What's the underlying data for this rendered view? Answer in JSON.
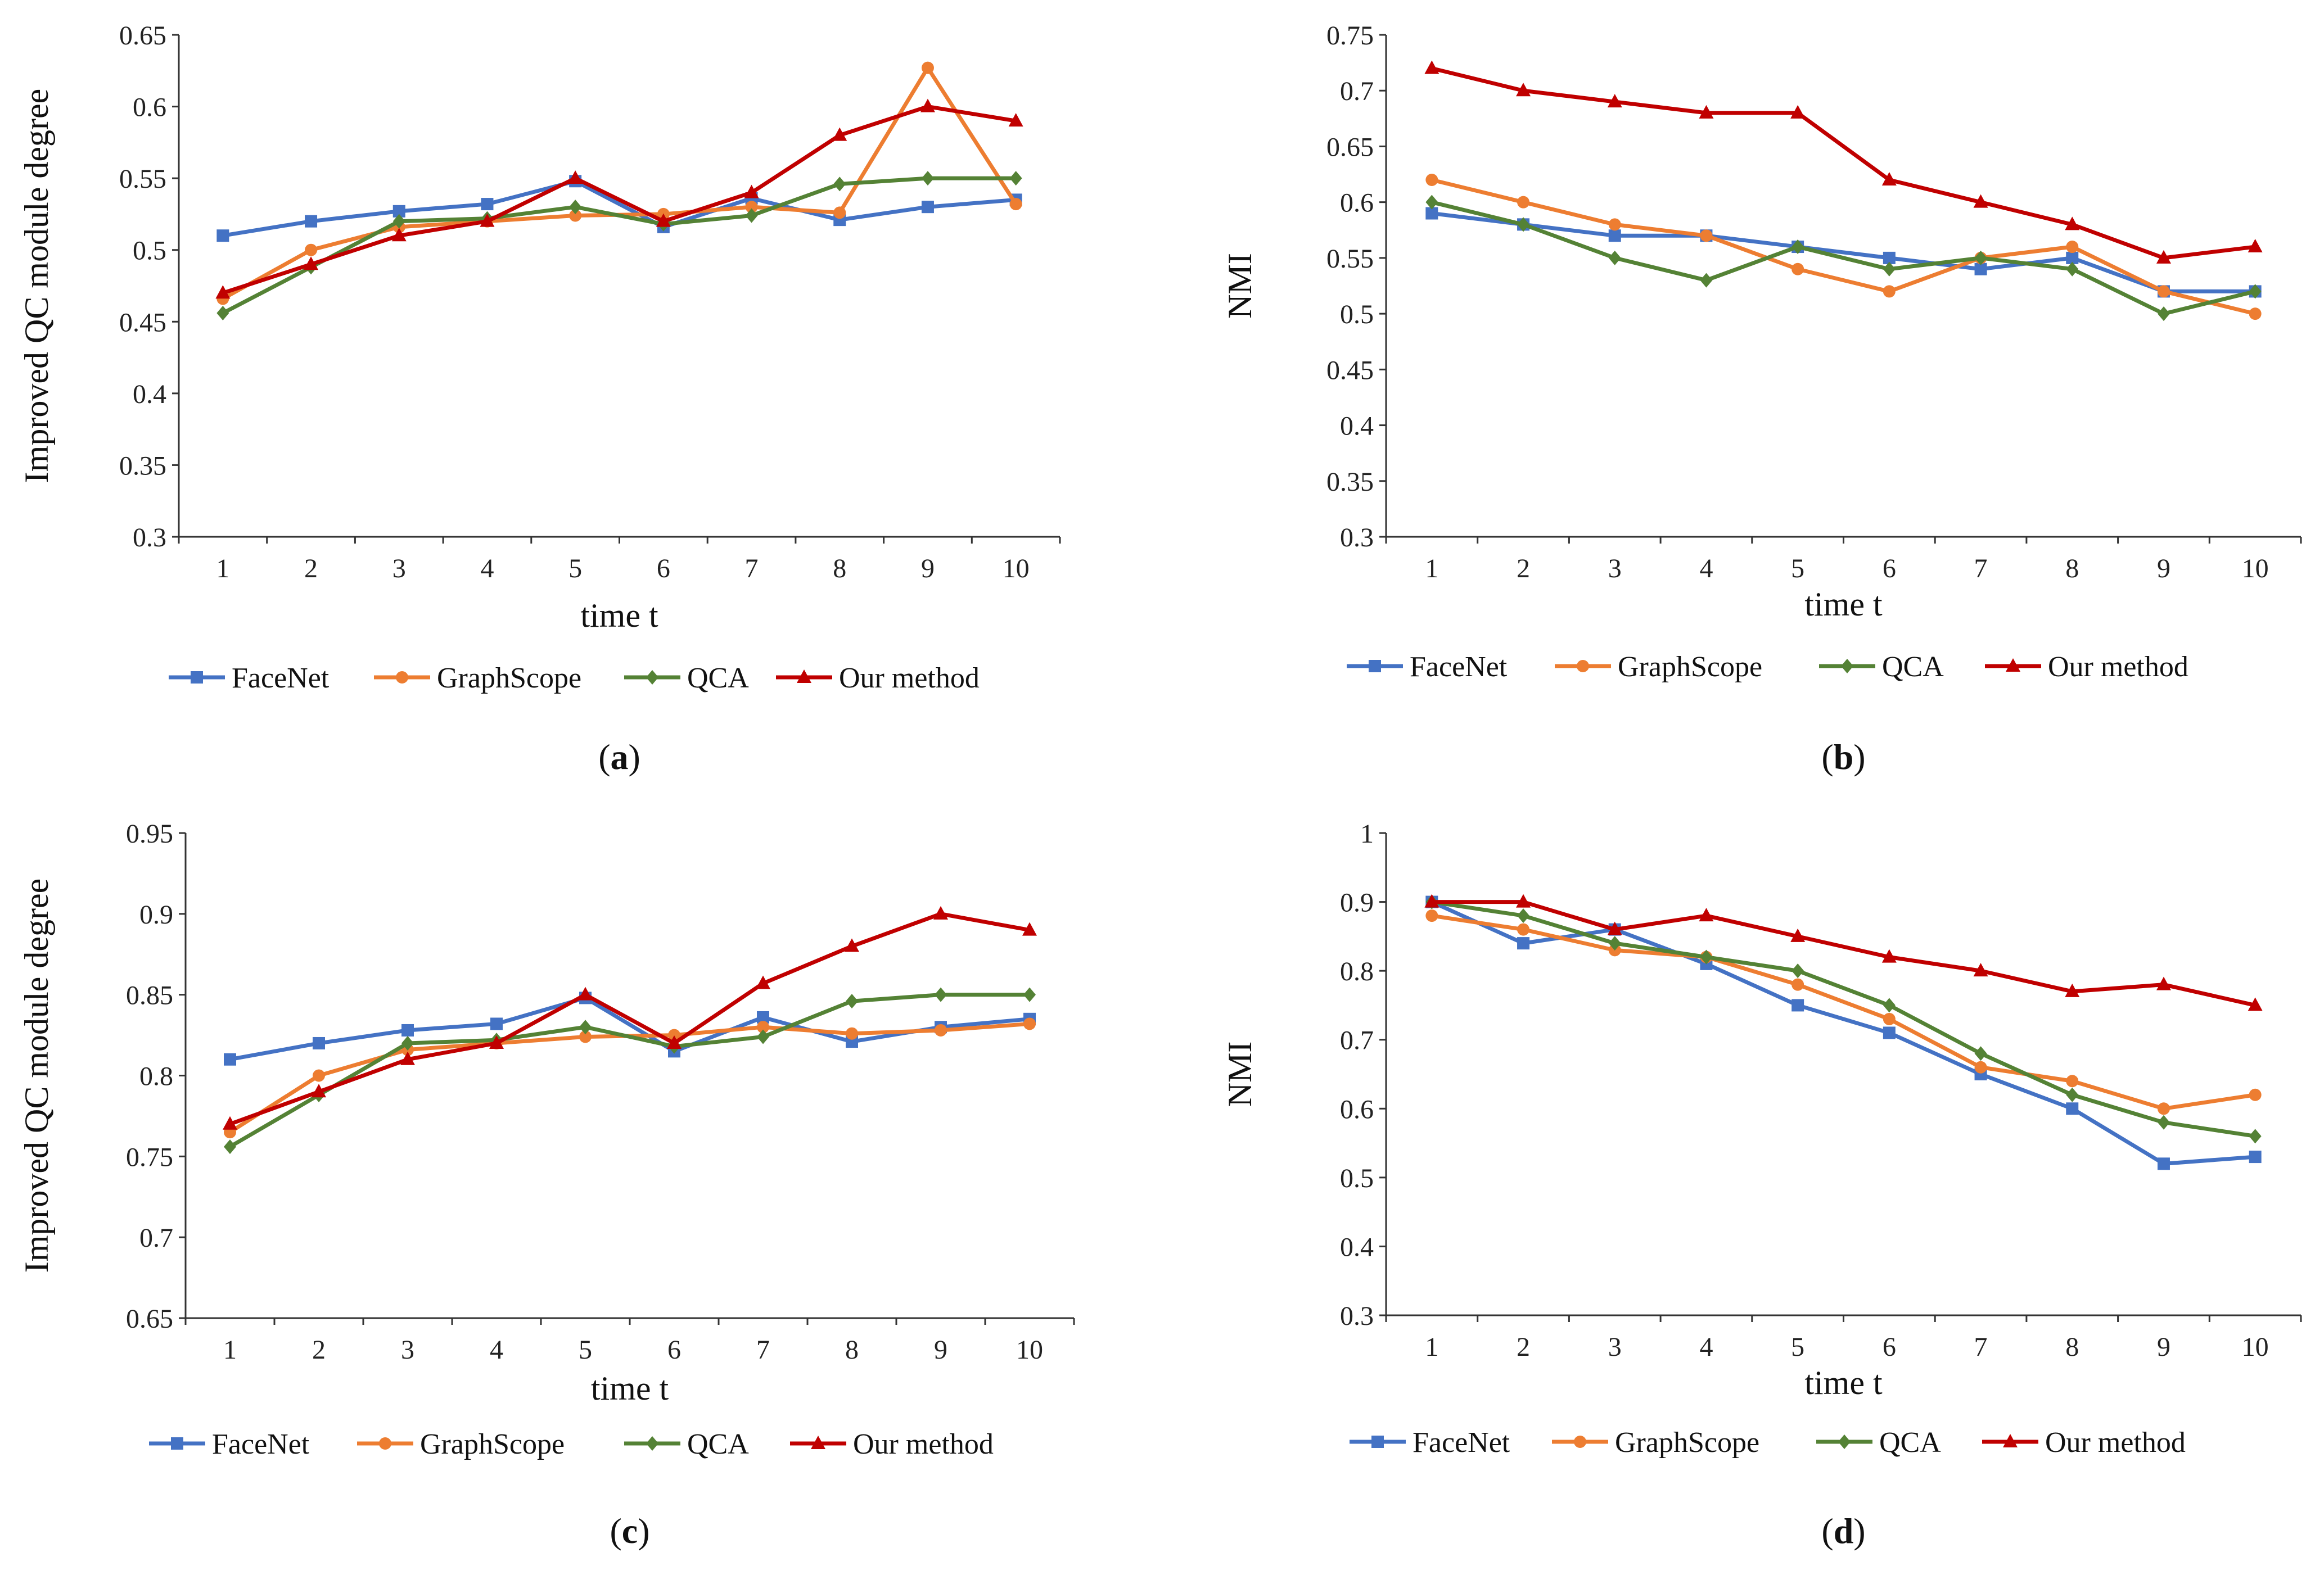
{
  "figure": {
    "legend_labels": [
      "FaceNet",
      "GraphScope",
      "QCA",
      "Our method"
    ],
    "series_colors": {
      "FaceNet": "#4472C4",
      "GraphScope": "#ED7D31",
      "QCA": "#548235",
      "Our method": "#C00000"
    },
    "series_markers": {
      "FaceNet": "square",
      "GraphScope": "circle",
      "QCA": "diamond",
      "Our method": "triangle"
    }
  },
  "chart_data": [
    {
      "type": "line",
      "panel_label": "a",
      "title": "",
      "xlabel": "time t",
      "ylabel": "Improved QC module degree",
      "x": [
        1,
        2,
        3,
        4,
        5,
        6,
        7,
        8,
        9,
        10
      ],
      "ylim": [
        0.3,
        0.65
      ],
      "yticks": [
        0.3,
        0.35,
        0.4,
        0.45,
        0.5,
        0.55,
        0.6,
        0.65
      ],
      "ytick_labels": [
        "0.3",
        "0.35",
        "0.4",
        "0.45",
        "0.5",
        "0.55",
        "0.6",
        "0.65"
      ],
      "grid": false,
      "legend": "bottom",
      "series": [
        {
          "name": "FaceNet",
          "values": [
            0.51,
            0.52,
            0.527,
            0.532,
            0.548,
            0.516,
            0.536,
            0.521,
            0.53,
            0.535
          ]
        },
        {
          "name": "GraphScope",
          "values": [
            0.466,
            0.5,
            0.516,
            0.52,
            0.524,
            0.525,
            0.53,
            0.526,
            0.627,
            0.532
          ]
        },
        {
          "name": "QCA",
          "values": [
            0.456,
            0.488,
            0.52,
            0.522,
            0.53,
            0.518,
            0.524,
            0.546,
            0.55,
            0.55
          ]
        },
        {
          "name": "Our method",
          "values": [
            0.47,
            0.49,
            0.51,
            0.52,
            0.55,
            0.52,
            0.54,
            0.58,
            0.6,
            0.59
          ]
        }
      ]
    },
    {
      "type": "line",
      "panel_label": "b",
      "title": "",
      "xlabel": "time t",
      "ylabel": "NMI",
      "x": [
        1,
        2,
        3,
        4,
        5,
        6,
        7,
        8,
        9,
        10
      ],
      "ylim": [
        0.3,
        0.75
      ],
      "yticks": [
        0.3,
        0.35,
        0.4,
        0.45,
        0.5,
        0.55,
        0.6,
        0.65,
        0.7,
        0.75
      ],
      "ytick_labels": [
        "0.3",
        "0.35",
        "0.4",
        "0.45",
        "0.5",
        "0.55",
        "0.6",
        "0.65",
        "0.7",
        "0.75"
      ],
      "grid": false,
      "legend": "bottom",
      "series": [
        {
          "name": "FaceNet",
          "values": [
            0.59,
            0.58,
            0.57,
            0.57,
            0.56,
            0.55,
            0.54,
            0.55,
            0.52,
            0.52
          ]
        },
        {
          "name": "GraphScope",
          "values": [
            0.62,
            0.6,
            0.58,
            0.57,
            0.54,
            0.52,
            0.55,
            0.56,
            0.52,
            0.5
          ]
        },
        {
          "name": "QCA",
          "values": [
            0.6,
            0.58,
            0.55,
            0.53,
            0.56,
            0.54,
            0.55,
            0.54,
            0.5,
            0.52
          ]
        },
        {
          "name": "Our method",
          "values": [
            0.72,
            0.7,
            0.69,
            0.68,
            0.68,
            0.62,
            0.6,
            0.58,
            0.55,
            0.56
          ]
        }
      ]
    },
    {
      "type": "line",
      "panel_label": "c",
      "title": "",
      "xlabel": "time t",
      "ylabel": "Improved QC module degree",
      "x": [
        1,
        2,
        3,
        4,
        5,
        6,
        7,
        8,
        9,
        10
      ],
      "ylim": [
        0.65,
        0.95
      ],
      "yticks": [
        0.65,
        0.7,
        0.75,
        0.8,
        0.85,
        0.9,
        0.95
      ],
      "ytick_labels": [
        "0.65",
        "0.7",
        "0.75",
        "0.8",
        "0.85",
        "0.9",
        "0.95"
      ],
      "grid": false,
      "legend": "bottom",
      "series": [
        {
          "name": "FaceNet",
          "values": [
            0.81,
            0.82,
            0.828,
            0.832,
            0.848,
            0.815,
            0.836,
            0.821,
            0.83,
            0.835
          ]
        },
        {
          "name": "GraphScope",
          "values": [
            0.765,
            0.8,
            0.816,
            0.82,
            0.824,
            0.825,
            0.83,
            0.826,
            0.828,
            0.832
          ]
        },
        {
          "name": "QCA",
          "values": [
            0.756,
            0.788,
            0.82,
            0.822,
            0.83,
            0.818,
            0.824,
            0.846,
            0.85,
            0.85
          ]
        },
        {
          "name": "Our method",
          "values": [
            0.77,
            0.79,
            0.81,
            0.82,
            0.85,
            0.82,
            0.857,
            0.88,
            0.9,
            0.89
          ]
        }
      ]
    },
    {
      "type": "line",
      "panel_label": "d",
      "title": "",
      "xlabel": "time t",
      "ylabel": "NMI",
      "x": [
        1,
        2,
        3,
        4,
        5,
        6,
        7,
        8,
        9,
        10
      ],
      "ylim": [
        0.3,
        1.0
      ],
      "yticks": [
        0.3,
        0.4,
        0.5,
        0.6,
        0.7,
        0.8,
        0.9,
        1.0
      ],
      "ytick_labels": [
        "0.3",
        "0.4",
        "0.5",
        "0.6",
        "0.7",
        "0.8",
        "0.9",
        "1"
      ],
      "grid": false,
      "legend": "bottom",
      "series": [
        {
          "name": "FaceNet",
          "values": [
            0.9,
            0.84,
            0.86,
            0.81,
            0.75,
            0.71,
            0.65,
            0.6,
            0.52,
            0.53
          ]
        },
        {
          "name": "GraphScope",
          "values": [
            0.88,
            0.86,
            0.83,
            0.82,
            0.78,
            0.73,
            0.66,
            0.64,
            0.6,
            0.62
          ]
        },
        {
          "name": "QCA",
          "values": [
            0.9,
            0.88,
            0.84,
            0.82,
            0.8,
            0.75,
            0.68,
            0.62,
            0.58,
            0.56
          ]
        },
        {
          "name": "Our method",
          "values": [
            0.9,
            0.9,
            0.86,
            0.88,
            0.85,
            0.82,
            0.8,
            0.77,
            0.78,
            0.75
          ]
        }
      ]
    }
  ]
}
